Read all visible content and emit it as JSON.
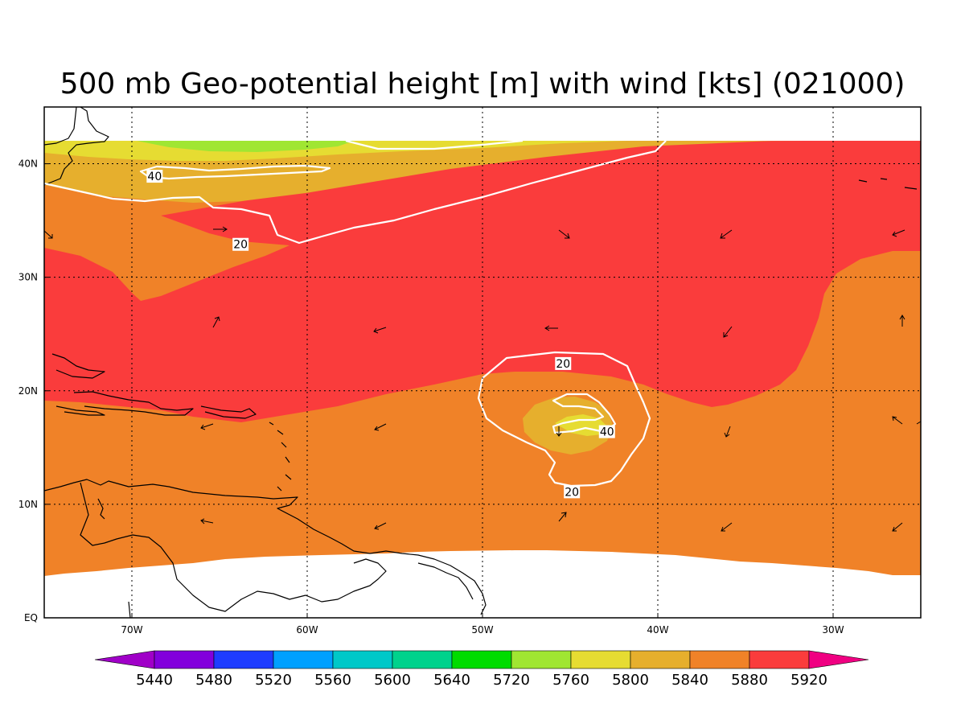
{
  "title": "500 mb Geo-potential height [m] with wind [kts] (021000)",
  "axes": {
    "x_ticks": [
      {
        "label": "70W",
        "lon": -70
      },
      {
        "label": "60W",
        "lon": -60
      },
      {
        "label": "50W",
        "lon": -50
      },
      {
        "label": "40W",
        "lon": -40
      },
      {
        "label": "30W",
        "lon": -30
      }
    ],
    "y_ticks": [
      {
        "label": "EQ",
        "lat": 0
      },
      {
        "label": "10N",
        "lat": 10
      },
      {
        "label": "20N",
        "lat": 20
      },
      {
        "label": "30N",
        "lat": 30
      },
      {
        "label": "40N",
        "lat": 40
      }
    ],
    "lon_range": [
      -75,
      -25
    ],
    "lat_range": [
      0,
      45
    ]
  },
  "colorbar": {
    "levels": [
      "5440",
      "5480",
      "5520",
      "5560",
      "5600",
      "5640",
      "5720",
      "5760",
      "5800",
      "5840",
      "5880",
      "5920"
    ],
    "colors": [
      "#a000c8",
      "#8200dc",
      "#1e3cff",
      "#00a0ff",
      "#00c8c8",
      "#00d28c",
      "#00dc00",
      "#a0e632",
      "#e6dc32",
      "#e6af2d",
      "#f08228",
      "#fa3c3c",
      "#f00082"
    ]
  },
  "chart_data": {
    "type": "heatmap",
    "variable": "500 mb Geo-potential height [m]",
    "shaded_bands_present": [
      {
        "range": "5720-5760",
        "color": "#a0e632"
      },
      {
        "range": "5760-5800",
        "color": "#e6dc32"
      },
      {
        "range": "5800-5840",
        "color": "#e6af2d"
      },
      {
        "range": "5840-5880",
        "color": "#f08228"
      },
      {
        "range": "5880-5920",
        "color": "#fa3c3c"
      }
    ],
    "wind_speed_contours_kts": [
      20,
      40
    ],
    "contour_labels": [
      {
        "text": "40",
        "lon": -68.7,
        "lat": 38.9
      },
      {
        "text": "20",
        "lon": -63.8,
        "lat": 32.9
      },
      {
        "text": "20",
        "lon": -45.4,
        "lat": 22.4
      },
      {
        "text": "40",
        "lon": -42.9,
        "lat": 16.4
      },
      {
        "text": "20",
        "lon": -44.9,
        "lat": 11.1
      }
    ]
  }
}
